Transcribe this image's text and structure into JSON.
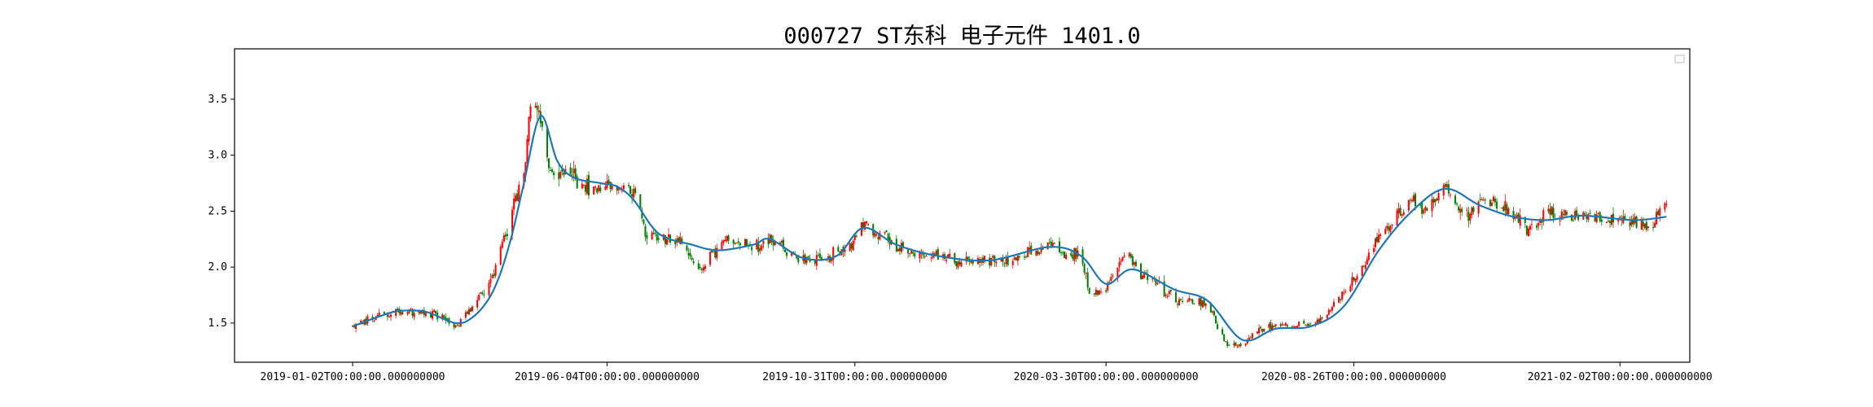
{
  "chart_data": {
    "type": "candlestick",
    "title": "000727 ST东科 电子元件 1401.0",
    "xlabel": "",
    "ylabel": "",
    "ylim": [
      1.15,
      3.95
    ],
    "y_ticks": [
      1.5,
      2.0,
      2.5,
      3.0,
      3.5
    ],
    "y_tick_labels": [
      "1.5",
      "2.0",
      "2.5",
      "3.0",
      "3.5"
    ],
    "x_ticks": [
      {
        "date": "2019-01-02",
        "label": "2019-01-02T00:00:00.000000000"
      },
      {
        "date": "2019-06-04",
        "label": "2019-06-04T00:00:00.000000000"
      },
      {
        "date": "2019-10-31",
        "label": "2019-10-31T00:00:00.000000000"
      },
      {
        "date": "2020-03-30",
        "label": "2020-03-30T00:00:00.000000000"
      },
      {
        "date": "2020-08-26",
        "label": "2020-08-26T00:00:00.000000000"
      },
      {
        "date": "2021-02-02",
        "label": "2021-02-02T00:00:00.000000000"
      }
    ],
    "x_range": [
      "2018-10-23",
      "2021-03-16"
    ],
    "grid": false,
    "legend": "top-right",
    "up_color": "#ff0000",
    "down_color": "#008000",
    "ma_color": "#1f77b4",
    "close_series": [
      [
        "2019-01-02",
        1.47
      ],
      [
        "2019-01-10",
        1.52
      ],
      [
        "2019-01-20",
        1.58
      ],
      [
        "2019-01-31",
        1.62
      ],
      [
        "2019-02-15",
        1.6
      ],
      [
        "2019-02-25",
        1.55
      ],
      [
        "2019-03-05",
        1.47
      ],
      [
        "2019-03-15",
        1.65
      ],
      [
        "2019-03-25",
        1.85
      ],
      [
        "2019-04-01",
        2.15
      ],
      [
        "2019-04-08",
        2.5
      ],
      [
        "2019-04-15",
        2.8
      ],
      [
        "2019-04-19",
        3.45
      ],
      [
        "2019-04-25",
        3.35
      ],
      [
        "2019-05-01",
        2.82
      ],
      [
        "2019-05-10",
        2.85
      ],
      [
        "2019-05-20",
        2.72
      ],
      [
        "2019-05-31",
        2.72
      ],
      [
        "2019-06-10",
        2.73
      ],
      [
        "2019-06-20",
        2.7
      ],
      [
        "2019-06-28",
        2.28
      ],
      [
        "2019-07-10",
        2.25
      ],
      [
        "2019-07-20",
        2.2
      ],
      [
        "2019-07-31",
        1.98
      ],
      [
        "2019-08-10",
        2.2
      ],
      [
        "2019-08-20",
        2.25
      ],
      [
        "2019-08-31",
        2.18
      ],
      [
        "2019-09-10",
        2.27
      ],
      [
        "2019-09-20",
        2.15
      ],
      [
        "2019-09-30",
        2.05
      ],
      [
        "2019-10-15",
        2.1
      ],
      [
        "2019-10-25",
        2.12
      ],
      [
        "2019-11-05",
        2.38
      ],
      [
        "2019-11-15",
        2.3
      ],
      [
        "2019-11-25",
        2.18
      ],
      [
        "2019-12-10",
        2.12
      ],
      [
        "2019-12-31",
        2.07
      ],
      [
        "2020-01-20",
        2.05
      ],
      [
        "2020-02-10",
        2.1
      ],
      [
        "2020-02-25",
        2.2
      ],
      [
        "2020-03-05",
        2.12
      ],
      [
        "2020-03-15",
        2.1
      ],
      [
        "2020-03-20",
        1.75
      ],
      [
        "2020-03-30",
        1.8
      ],
      [
        "2020-04-10",
        2.15
      ],
      [
        "2020-04-20",
        1.95
      ],
      [
        "2020-04-30",
        1.85
      ],
      [
        "2020-05-10",
        1.72
      ],
      [
        "2020-05-20",
        1.7
      ],
      [
        "2020-05-30",
        1.68
      ],
      [
        "2020-06-10",
        1.32
      ],
      [
        "2020-06-20",
        1.3
      ],
      [
        "2020-06-30",
        1.45
      ],
      [
        "2020-07-10",
        1.48
      ],
      [
        "2020-07-20",
        1.5
      ],
      [
        "2020-07-31",
        1.45
      ],
      [
        "2020-08-10",
        1.6
      ],
      [
        "2020-08-20",
        1.75
      ],
      [
        "2020-08-31",
        2.0
      ],
      [
        "2020-09-10",
        2.25
      ],
      [
        "2020-09-20",
        2.45
      ],
      [
        "2020-09-30",
        2.6
      ],
      [
        "2020-10-10",
        2.5
      ],
      [
        "2020-10-20",
        2.73
      ],
      [
        "2020-10-31",
        2.45
      ],
      [
        "2020-11-10",
        2.55
      ],
      [
        "2020-11-20",
        2.58
      ],
      [
        "2020-11-30",
        2.45
      ],
      [
        "2020-12-10",
        2.33
      ],
      [
        "2020-12-20",
        2.5
      ],
      [
        "2020-12-31",
        2.47
      ],
      [
        "2021-01-10",
        2.45
      ],
      [
        "2021-01-20",
        2.43
      ],
      [
        "2021-01-31",
        2.42
      ],
      [
        "2021-02-10",
        2.4
      ],
      [
        "2021-02-20",
        2.35
      ],
      [
        "2021-03-02",
        2.6
      ]
    ],
    "ma_series": [
      [
        "2019-01-02",
        1.47
      ],
      [
        "2019-01-20",
        1.57
      ],
      [
        "2019-01-31",
        1.61
      ],
      [
        "2019-02-15",
        1.6
      ],
      [
        "2019-03-05",
        1.5
      ],
      [
        "2019-03-15",
        1.55
      ],
      [
        "2019-03-25",
        1.72
      ],
      [
        "2019-04-01",
        1.95
      ],
      [
        "2019-04-08",
        2.3
      ],
      [
        "2019-04-15",
        2.75
      ],
      [
        "2019-04-25",
        3.35
      ],
      [
        "2019-05-05",
        2.95
      ],
      [
        "2019-05-15",
        2.8
      ],
      [
        "2019-05-31",
        2.75
      ],
      [
        "2019-06-10",
        2.72
      ],
      [
        "2019-06-20",
        2.6
      ],
      [
        "2019-07-05",
        2.3
      ],
      [
        "2019-07-25",
        2.2
      ],
      [
        "2019-08-10",
        2.15
      ],
      [
        "2019-08-31",
        2.2
      ],
      [
        "2019-09-10",
        2.25
      ],
      [
        "2019-09-30",
        2.08
      ],
      [
        "2019-10-20",
        2.1
      ],
      [
        "2019-11-05",
        2.35
      ],
      [
        "2019-11-25",
        2.2
      ],
      [
        "2019-12-20",
        2.1
      ],
      [
        "2020-01-20",
        2.06
      ],
      [
        "2020-02-25",
        2.18
      ],
      [
        "2020-03-15",
        2.1
      ],
      [
        "2020-03-30",
        1.85
      ],
      [
        "2020-04-15",
        1.98
      ],
      [
        "2020-05-10",
        1.8
      ],
      [
        "2020-05-30",
        1.7
      ],
      [
        "2020-06-20",
        1.35
      ],
      [
        "2020-07-10",
        1.45
      ],
      [
        "2020-07-31",
        1.47
      ],
      [
        "2020-08-20",
        1.65
      ],
      [
        "2020-09-10",
        2.15
      ],
      [
        "2020-09-30",
        2.5
      ],
      [
        "2020-10-20",
        2.7
      ],
      [
        "2020-11-10",
        2.55
      ],
      [
        "2020-11-30",
        2.45
      ],
      [
        "2020-12-20",
        2.42
      ],
      [
        "2021-01-10",
        2.46
      ],
      [
        "2021-02-10",
        2.42
      ],
      [
        "2021-03-02",
        2.45
      ]
    ]
  }
}
